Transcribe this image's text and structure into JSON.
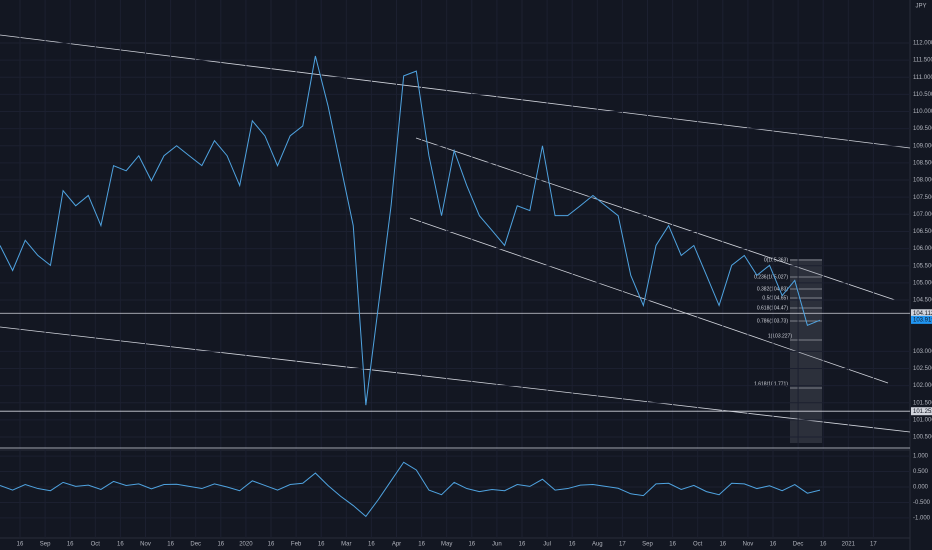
{
  "chart_data": {
    "type": "line",
    "symbol": "JPY",
    "series": [
      {
        "name": "Price",
        "color": "#4fa3e0",
        "values": [
          106.09,
          105.36,
          106.24,
          105.8,
          105.51,
          107.69,
          107.25,
          107.55,
          106.67,
          108.42,
          108.27,
          108.71,
          107.98,
          108.71,
          109.0,
          108.71,
          108.42,
          109.15,
          108.71,
          107.84,
          109.73,
          109.29,
          108.42,
          109.29,
          109.58,
          111.62,
          110.17,
          108.42,
          106.67,
          101.43,
          104.34,
          107.25,
          111.04,
          111.18,
          108.71,
          106.96,
          108.86,
          107.84,
          106.96,
          106.53,
          106.09,
          107.25,
          107.11,
          109.0,
          106.96,
          106.96,
          107.25,
          107.55,
          107.25,
          106.96,
          105.22,
          104.34,
          106.09,
          106.67,
          105.8,
          106.09,
          105.22,
          104.34,
          105.51,
          105.8,
          105.22,
          105.51,
          104.63,
          105.07,
          103.76,
          103.91
        ]
      }
    ],
    "oscillator": {
      "color": "#4fa3e0",
      "values": [
        0.05,
        -0.1,
        0.08,
        -0.05,
        -0.12,
        0.15,
        0.02,
        0.06,
        -0.08,
        0.18,
        0.05,
        0.1,
        -0.06,
        0.08,
        0.09,
        0.02,
        -0.05,
        0.1,
        0.0,
        -0.12,
        0.2,
        0.05,
        -0.1,
        0.08,
        0.12,
        0.45,
        0.05,
        -0.3,
        -0.6,
        -0.95,
        -0.4,
        0.2,
        0.8,
        0.55,
        -0.1,
        -0.25,
        0.15,
        -0.05,
        -0.15,
        -0.08,
        -0.12,
        0.08,
        0.02,
        0.25,
        -0.1,
        -0.05,
        0.06,
        0.08,
        0.02,
        -0.04,
        -0.22,
        -0.28,
        0.1,
        0.12,
        -0.08,
        0.05,
        -0.15,
        -0.25,
        0.12,
        0.1,
        -0.05,
        0.04,
        -0.12,
        0.08,
        -0.2,
        -0.1
      ],
      "ylim": [
        -1.1,
        1.1
      ],
      "yticks": [
        {
          "value": 1,
          "label": "1.000"
        },
        {
          "value": 0.5,
          "label": "0.500"
        },
        {
          "value": 0,
          "label": "0.000"
        },
        {
          "value": -0.5,
          "label": "-0.500"
        },
        {
          "value": -1,
          "label": "-1.000"
        }
      ]
    },
    "ylim": [
      100.15,
      113.08
    ],
    "yticks": [
      {
        "value": 112,
        "label": "112.000"
      },
      {
        "value": 111.5,
        "label": "111.500"
      },
      {
        "value": 111,
        "label": "111.000"
      },
      {
        "value": 110.5,
        "label": "110.500"
      },
      {
        "value": 110,
        "label": "110.000"
      },
      {
        "value": 109.5,
        "label": "109.500"
      },
      {
        "value": 109,
        "label": "109.000"
      },
      {
        "value": 108.5,
        "label": "108.500"
      },
      {
        "value": 108,
        "label": "108.000"
      },
      {
        "value": 107.5,
        "label": "107.500"
      },
      {
        "value": 107,
        "label": "107.000"
      },
      {
        "value": 106.5,
        "label": "106.500"
      },
      {
        "value": 106,
        "label": "106.000"
      },
      {
        "value": 105.5,
        "label": "105.500"
      },
      {
        "value": 105,
        "label": "105.000"
      },
      {
        "value": 104.5,
        "label": "104.500"
      },
      {
        "value": 103,
        "label": "103.000"
      },
      {
        "value": 102.5,
        "label": "102.500"
      },
      {
        "value": 102,
        "label": "102.000"
      },
      {
        "value": 101.5,
        "label": "101.500"
      },
      {
        "value": 101,
        "label": "101.000"
      },
      {
        "value": 100.5,
        "label": "100.500"
      }
    ],
    "price_marks": [
      {
        "value": 104.112,
        "label": "104.112",
        "color": "#d1d4dc"
      },
      {
        "value": 103.919,
        "label": "103.919",
        "color": "#2196f3"
      },
      {
        "value": 101.253,
        "label": "101.253",
        "color": "#d1d4dc"
      }
    ],
    "hlines": [
      104.112,
      101.253,
      100.18
    ],
    "xticks": [
      "16",
      "Sep",
      "16",
      "Oct",
      "16",
      "Nov",
      "16",
      "Dec",
      "16",
      "2020",
      "16",
      "Feb",
      "16",
      "Mar",
      "16",
      "Apr",
      "16",
      "May",
      "16",
      "Jun",
      "16",
      "Jul",
      "16",
      "Aug",
      "17",
      "Sep",
      "16",
      "Oct",
      "16",
      "Nov",
      "16",
      "Dec",
      "16",
      "2021",
      "17"
    ],
    "fib_labels": [
      "0(105.363)",
      "0.236(105.027)",
      "0.382(104.83)",
      "0.5(104.65)",
      "0.618(104.47)",
      "0.786(103.73)",
      "1(103.227)",
      "1.618(101.771)"
    ]
  }
}
